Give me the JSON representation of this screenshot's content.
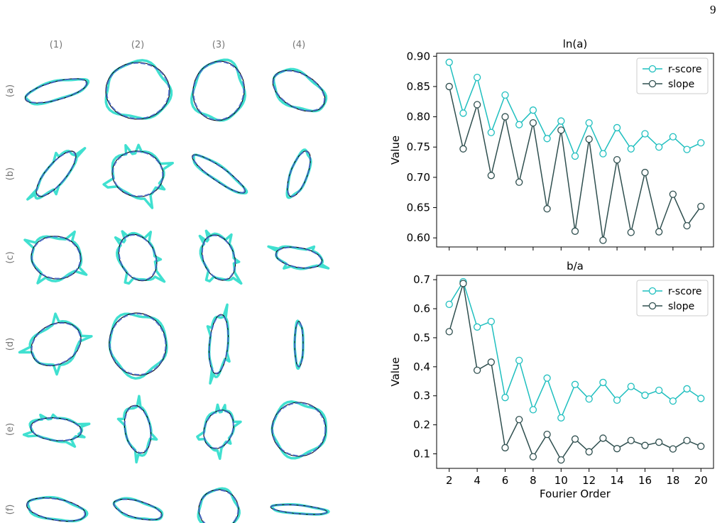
{
  "page_number": "9",
  "shape_grid": {
    "column_labels": [
      "(1)",
      "(2)",
      "(3)",
      "(4)"
    ],
    "row_labels": [
      "(a)",
      "(b)",
      "(c)",
      "(d)",
      "(e)",
      "(f)"
    ]
  },
  "colors": {
    "contour": "#40e0d0",
    "fit_dashed": "#4466cc",
    "ellipse": "#000000",
    "r_score": "#1fbfbf",
    "slope": "#2f4f4f",
    "grid_label": "#777777"
  },
  "chart_data": [
    {
      "type": "line",
      "title": "ln(a)",
      "xlabel": "",
      "ylabel": "Value",
      "x": [
        2,
        3,
        4,
        5,
        6,
        7,
        8,
        9,
        10,
        11,
        12,
        13,
        14,
        15,
        16,
        17,
        18,
        19,
        20
      ],
      "ylim": [
        0.585,
        0.905
      ],
      "yticks": [
        0.6,
        0.65,
        0.7,
        0.75,
        0.8,
        0.85,
        0.9
      ],
      "ytick_labels": [
        "0.60",
        "0.65",
        "0.70",
        "0.75",
        "0.80",
        "0.85",
        "0.90"
      ],
      "xticks": [
        2,
        4,
        6,
        8,
        10,
        12,
        14,
        16,
        18,
        20
      ],
      "show_xtick_labels": false,
      "legend_position": "top-right",
      "series": [
        {
          "name": "r-score",
          "values": [
            0.89,
            0.806,
            0.865,
            0.774,
            0.836,
            0.787,
            0.811,
            0.764,
            0.793,
            0.735,
            0.79,
            0.739,
            0.782,
            0.747,
            0.772,
            0.75,
            0.767,
            0.746,
            0.757
          ]
        },
        {
          "name": "slope",
          "values": [
            0.85,
            0.747,
            0.82,
            0.703,
            0.8,
            0.692,
            0.79,
            0.648,
            0.778,
            0.611,
            0.763,
            0.596,
            0.729,
            0.609,
            0.708,
            0.61,
            0.672,
            0.62,
            0.652
          ]
        }
      ]
    },
    {
      "type": "line",
      "title": "b/a",
      "xlabel": "Fourier Order",
      "ylabel": "Value",
      "x": [
        2,
        3,
        4,
        5,
        6,
        7,
        8,
        9,
        10,
        11,
        12,
        13,
        14,
        15,
        16,
        17,
        18,
        19,
        20
      ],
      "ylim": [
        0.05,
        0.715
      ],
      "yticks": [
        0.1,
        0.2,
        0.3,
        0.4,
        0.5,
        0.6,
        0.7
      ],
      "ytick_labels": [
        "0.1",
        "0.2",
        "0.3",
        "0.4",
        "0.5",
        "0.6",
        "0.7"
      ],
      "xticks": [
        2,
        4,
        6,
        8,
        10,
        12,
        14,
        16,
        18,
        20
      ],
      "xtick_labels": [
        "2",
        "4",
        "6",
        "8",
        "10",
        "12",
        "14",
        "16",
        "18",
        "20"
      ],
      "show_xtick_labels": true,
      "legend_position": "top-right",
      "series": [
        {
          "name": "r-score",
          "values": [
            0.615,
            0.693,
            0.537,
            0.556,
            0.294,
            0.422,
            0.252,
            0.361,
            0.224,
            0.339,
            0.289,
            0.346,
            0.285,
            0.332,
            0.302,
            0.319,
            0.282,
            0.324,
            0.291
          ]
        },
        {
          "name": "slope",
          "values": [
            0.521,
            0.687,
            0.388,
            0.416,
            0.121,
            0.218,
            0.09,
            0.167,
            0.079,
            0.151,
            0.107,
            0.154,
            0.118,
            0.146,
            0.129,
            0.14,
            0.117,
            0.146,
            0.126
          ]
        }
      ]
    }
  ]
}
